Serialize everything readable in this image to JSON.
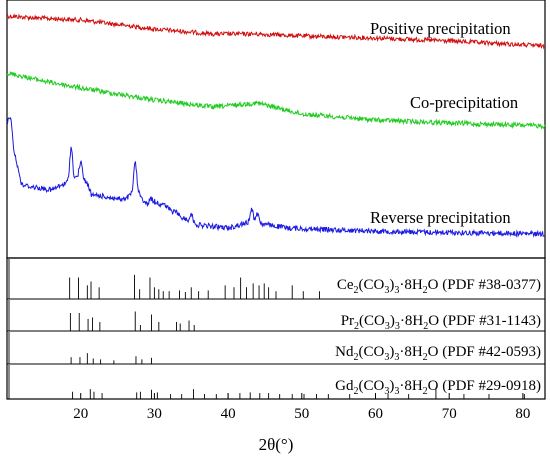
{
  "chart_data": {
    "type": "line",
    "xlabel": "2θ(°)",
    "xlim": [
      10,
      83
    ],
    "ticks": [
      "20",
      "30",
      "40",
      "50",
      "60",
      "70",
      "80"
    ],
    "tick_values": [
      20,
      30,
      40,
      50,
      60,
      70,
      80
    ],
    "colors": {
      "positive": "#d01010",
      "co": "#22cc22",
      "reverse": "#1a1ae0",
      "ref": "#000000"
    },
    "series": [
      {
        "name": "Positive precipitation",
        "x": [
          10,
          14,
          20,
          30,
          38,
          44,
          50,
          60,
          70,
          83
        ],
        "y": [
          16,
          18,
          20,
          29,
          34,
          34,
          36,
          38,
          41,
          46
        ]
      },
      {
        "name": "Co-precipitation",
        "x": [
          10,
          15,
          20,
          30,
          38,
          44,
          50,
          60,
          70,
          83
        ],
        "y": [
          73,
          81,
          88,
          100,
          107,
          103,
          114,
          120,
          123,
          126
        ]
      },
      {
        "name": "Reverse precipitation",
        "x": [
          10,
          12,
          16,
          19,
          20,
          22,
          26,
          27.5,
          29,
          30.5,
          33,
          36,
          40,
          43,
          48,
          55,
          65,
          75,
          83
        ],
        "y": [
          120,
          185,
          190,
          180,
          175,
          195,
          200,
          190,
          205,
          200,
          215,
          225,
          228,
          222,
          228,
          230,
          232,
          233,
          234
        ],
        "peaks": [
          {
            "x": 10.5,
            "y": 118
          },
          {
            "x": 18.7,
            "y": 148
          },
          {
            "x": 20.0,
            "y": 162
          },
          {
            "x": 21.5,
            "y": 196
          },
          {
            "x": 27.4,
            "y": 163
          },
          {
            "x": 29.5,
            "y": 198
          },
          {
            "x": 30.6,
            "y": 204
          },
          {
            "x": 33.0,
            "y": 212
          },
          {
            "x": 35.0,
            "y": 214
          },
          {
            "x": 43.2,
            "y": 208
          },
          {
            "x": 44.0,
            "y": 213
          }
        ]
      }
    ],
    "references": [
      {
        "compound": "Ce",
        "sub": "2",
        "anion": "(CO",
        "sub2": "3",
        "close": ")",
        "sub3": "3",
        "hydrate": "·8H",
        "sub4": "2",
        "tail": "O (PDF #38-0377)",
        "lines": [
          {
            "x": 18.5,
            "h": 0.55
          },
          {
            "x": 19.7,
            "h": 0.55
          },
          {
            "x": 20.9,
            "h": 0.35
          },
          {
            "x": 21.4,
            "h": 0.45
          },
          {
            "x": 22.5,
            "h": 0.3
          },
          {
            "x": 27.3,
            "h": 0.62
          },
          {
            "x": 28.0,
            "h": 0.25
          },
          {
            "x": 29.4,
            "h": 0.55
          },
          {
            "x": 30.0,
            "h": 0.3
          },
          {
            "x": 30.6,
            "h": 0.25
          },
          {
            "x": 31.2,
            "h": 0.2
          },
          {
            "x": 32.0,
            "h": 0.2
          },
          {
            "x": 33.4,
            "h": 0.22
          },
          {
            "x": 34.2,
            "h": 0.18
          },
          {
            "x": 35.0,
            "h": 0.3
          },
          {
            "x": 36.0,
            "h": 0.2
          },
          {
            "x": 37.3,
            "h": 0.22
          },
          {
            "x": 39.6,
            "h": 0.35
          },
          {
            "x": 40.8,
            "h": 0.3
          },
          {
            "x": 41.7,
            "h": 0.55
          },
          {
            "x": 42.5,
            "h": 0.3
          },
          {
            "x": 43.4,
            "h": 0.4
          },
          {
            "x": 44.2,
            "h": 0.35
          },
          {
            "x": 44.9,
            "h": 0.4
          },
          {
            "x": 45.5,
            "h": 0.3
          },
          {
            "x": 46.5,
            "h": 0.2
          },
          {
            "x": 48.7,
            "h": 0.35
          },
          {
            "x": 50.2,
            "h": 0.2
          },
          {
            "x": 52.4,
            "h": 0.2
          }
        ]
      },
      {
        "compound": "Pr",
        "sub": "2",
        "anion": "(CO",
        "sub2": "3",
        "close": ")",
        "sub3": "3",
        "hydrate": "·8H",
        "sub4": "2",
        "tail": "O (PDF #31-1143)",
        "lines": [
          {
            "x": 18.6,
            "h": 0.6
          },
          {
            "x": 19.8,
            "h": 0.6
          },
          {
            "x": 21.0,
            "h": 0.4
          },
          {
            "x": 21.6,
            "h": 0.45
          },
          {
            "x": 22.6,
            "h": 0.3
          },
          {
            "x": 27.4,
            "h": 0.65
          },
          {
            "x": 28.1,
            "h": 0.2
          },
          {
            "x": 29.6,
            "h": 0.55
          },
          {
            "x": 30.6,
            "h": 0.3
          },
          {
            "x": 33.0,
            "h": 0.3
          },
          {
            "x": 33.5,
            "h": 0.25
          },
          {
            "x": 34.7,
            "h": 0.35
          },
          {
            "x": 35.4,
            "h": 0.2
          }
        ]
      },
      {
        "compound": "Nd",
        "sub": "2",
        "anion": "(CO",
        "sub2": "3",
        "close": ")",
        "sub3": "3",
        "hydrate": "·8H",
        "sub4": "2",
        "tail": "O (PDF #42-0593)",
        "lines": [
          {
            "x": 18.7,
            "h": 0.22
          },
          {
            "x": 19.9,
            "h": 0.22
          },
          {
            "x": 20.9,
            "h": 0.35
          },
          {
            "x": 21.7,
            "h": 0.18
          },
          {
            "x": 22.7,
            "h": 0.15
          },
          {
            "x": 24.5,
            "h": 0.12
          },
          {
            "x": 27.5,
            "h": 0.25
          },
          {
            "x": 28.3,
            "h": 0.15
          },
          {
            "x": 29.6,
            "h": 0.2
          }
        ]
      },
      {
        "compound": "Gd",
        "sub": "2",
        "anion": "(CO",
        "sub2": "3",
        "close": ")",
        "sub3": "3",
        "hydrate": "·8H",
        "sub4": "2",
        "tail": "O (PDF #29-0918)",
        "lines": [
          {
            "x": 18.9,
            "h": 0.22
          },
          {
            "x": 21.3,
            "h": 0.3
          },
          {
            "x": 21.8,
            "h": 0.22
          },
          {
            "x": 22.9,
            "h": 0.18
          },
          {
            "x": 27.6,
            "h": 0.2
          },
          {
            "x": 28.1,
            "h": 0.22
          },
          {
            "x": 29.6,
            "h": 0.28
          },
          {
            "x": 30.4,
            "h": 0.2
          },
          {
            "x": 32.2,
            "h": 0.15
          },
          {
            "x": 33.7,
            "h": 0.15
          },
          {
            "x": 35.3,
            "h": 0.3
          },
          {
            "x": 36.8,
            "h": 0.15
          },
          {
            "x": 38.4,
            "h": 0.15
          },
          {
            "x": 40.0,
            "h": 0.18
          },
          {
            "x": 41.6,
            "h": 0.18
          },
          {
            "x": 43.0,
            "h": 0.2
          },
          {
            "x": 44.3,
            "h": 0.18
          },
          {
            "x": 45.5,
            "h": 0.18
          },
          {
            "x": 47.0,
            "h": 0.15
          },
          {
            "x": 48.7,
            "h": 0.15
          },
          {
            "x": 50.3,
            "h": 0.15
          },
          {
            "x": 52.0,
            "h": 0.15
          },
          {
            "x": 53.6,
            "h": 0.15
          },
          {
            "x": 56.5,
            "h": 0.15
          },
          {
            "x": 61.7,
            "h": 0.15
          },
          {
            "x": 64.5,
            "h": 0.15
          },
          {
            "x": 68.2,
            "h": 0.35
          },
          {
            "x": 72.0,
            "h": 0.15
          },
          {
            "x": 75.4,
            "h": 0.15
          },
          {
            "x": 80.2,
            "h": 0.15
          }
        ]
      }
    ]
  }
}
